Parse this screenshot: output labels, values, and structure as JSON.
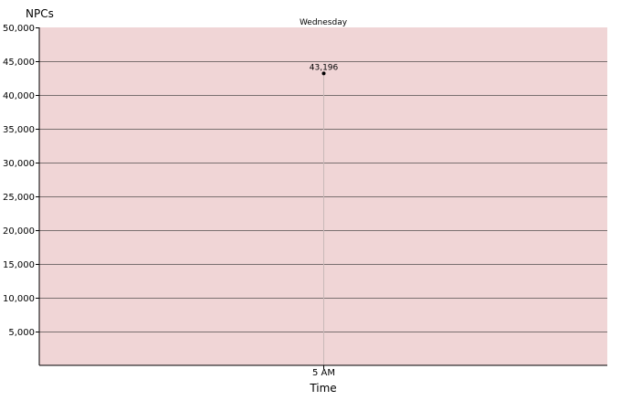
{
  "chart_data": {
    "type": "scatter",
    "y_axis_title": "NPCs",
    "x_axis_title": "Time",
    "group_label": "Wednesday",
    "categories": [
      "5 AM"
    ],
    "values": [
      43196
    ],
    "value_labels": [
      "43,196"
    ],
    "ylim": [
      0,
      50000
    ],
    "y_ticks": [
      5000,
      10000,
      15000,
      20000,
      25000,
      30000,
      35000,
      40000,
      45000,
      50000
    ],
    "y_tick_labels": [
      "5,000",
      "10,000",
      "15,000",
      "20,000",
      "25,000",
      "30,000",
      "35,000",
      "40,000",
      "45,000",
      "50,000"
    ],
    "grid": true,
    "legend": "none"
  },
  "colors": {
    "plot_background": "#f0d5d6",
    "gridline": "#7a7070",
    "point": "#000000",
    "drop_line": "#c8b8b8"
  }
}
